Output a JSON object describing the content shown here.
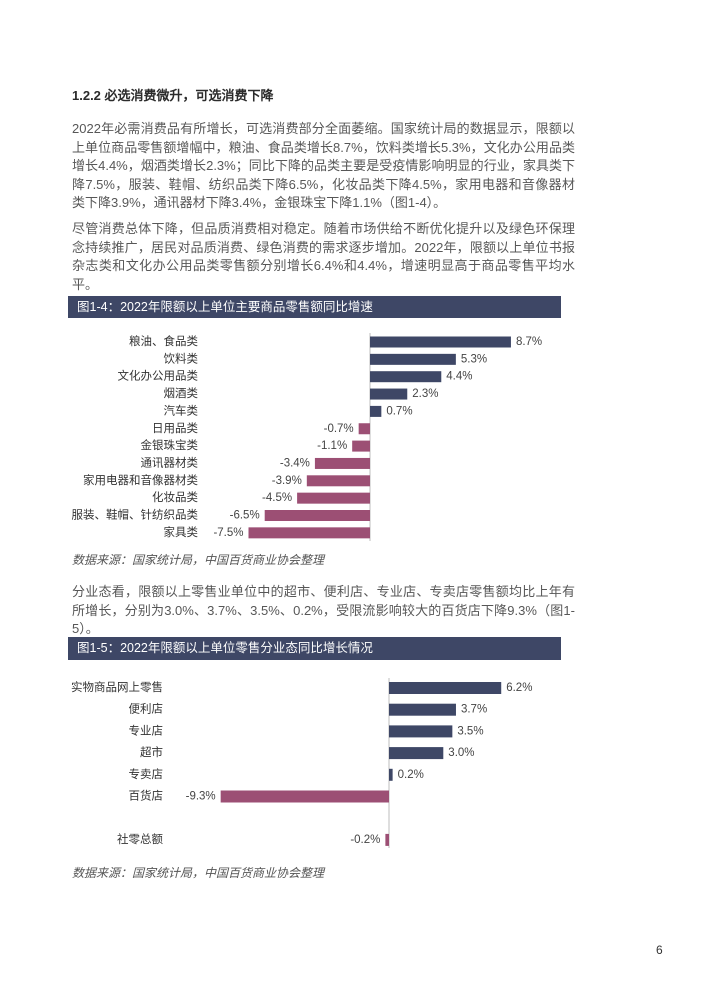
{
  "document": {
    "heading": "1.2.2 必选消费微升，可选消费下降",
    "paragraphs": [
      "2022年必需消费品有所增长，可选消费部分全面萎缩。国家统计局的数据显示，限额以上单位商品零售额增幅中，粮油、食品类增长8.7%，饮料类增长5.3%，文化办公用品类增长4.4%，烟酒类增长2.3%；同比下降的品类主要是受疫情影响明显的行业，家具类下降7.5%，服装、鞋帽、纺织品类下降6.5%，化妆品类下降4.5%，家用电器和音像器材类下降3.9%，通讯器材下降3.4%，金银珠宝下降1.1%（图1-4）。",
      "尽管消费总体下降，但品质消费相对稳定。随着市场供给不断优化提升以及绿色环保理念持续推广，居民对品质消费、绿色消费的需求逐步增加。2022年，限额以上单位书报杂志类和文化办公用品类零售额分别增长6.4%和4.4%，增速明显高于商品零售平均水平。",
      "分业态看，限额以上零售业单位中的超市、便利店、专业店、专卖店零售额均比上年有所增长，分别为3.0%、3.7%、3.5%、0.2%，受限流影响较大的百货店下降9.3%（图1-5）。"
    ],
    "page_number": "6"
  },
  "colors": {
    "title_bar": "#3e4766",
    "positive_bar": "#3e4766",
    "negative_bar": "#9c4f74"
  },
  "chart_data": [
    {
      "type": "bar",
      "horizontal": true,
      "title": "图1-4：2022年限额以上单位主要商品零售额同比增速",
      "categories": [
        "粮油、食品类",
        "饮料类",
        "文化办公用品类",
        "烟酒类",
        "汽车类",
        "日用品类",
        "金银珠宝类",
        "通讯器材类",
        "家用电器和音像器材类",
        "化妆品类",
        "服装、鞋帽、针纺织品类",
        "家具类"
      ],
      "values": [
        8.7,
        5.3,
        4.4,
        2.3,
        0.7,
        -0.7,
        -1.1,
        -3.4,
        -3.9,
        -4.5,
        -6.5,
        -7.5
      ],
      "data_labels": [
        "8.7%",
        "5.3%",
        "4.4%",
        "2.3%",
        "0.7%",
        "-0.7%",
        "-1.1%",
        "-3.4%",
        "-3.9%",
        "-4.5%",
        "-6.5%",
        "-7.5%"
      ],
      "grid": false,
      "legend": false,
      "source": "数据来源：国家统计局，中国百货商业协会整理"
    },
    {
      "type": "bar",
      "horizontal": true,
      "title": "图1-5：2022年限额以上单位零售分业态同比增长情况",
      "categories": [
        "实物商品网上零售",
        "便利店",
        "专业店",
        "超市",
        "专卖店",
        "百货店",
        "社零总额"
      ],
      "values": [
        6.2,
        3.7,
        3.5,
        3.0,
        0.2,
        -9.3,
        -0.2
      ],
      "data_labels": [
        "6.2%",
        "3.7%",
        "3.5%",
        "3.0%",
        "0.2%",
        "-9.3%",
        "-0.2%"
      ],
      "grid": false,
      "legend": false,
      "source": "数据来源：国家统计局，中国百货商业协会整理"
    }
  ]
}
